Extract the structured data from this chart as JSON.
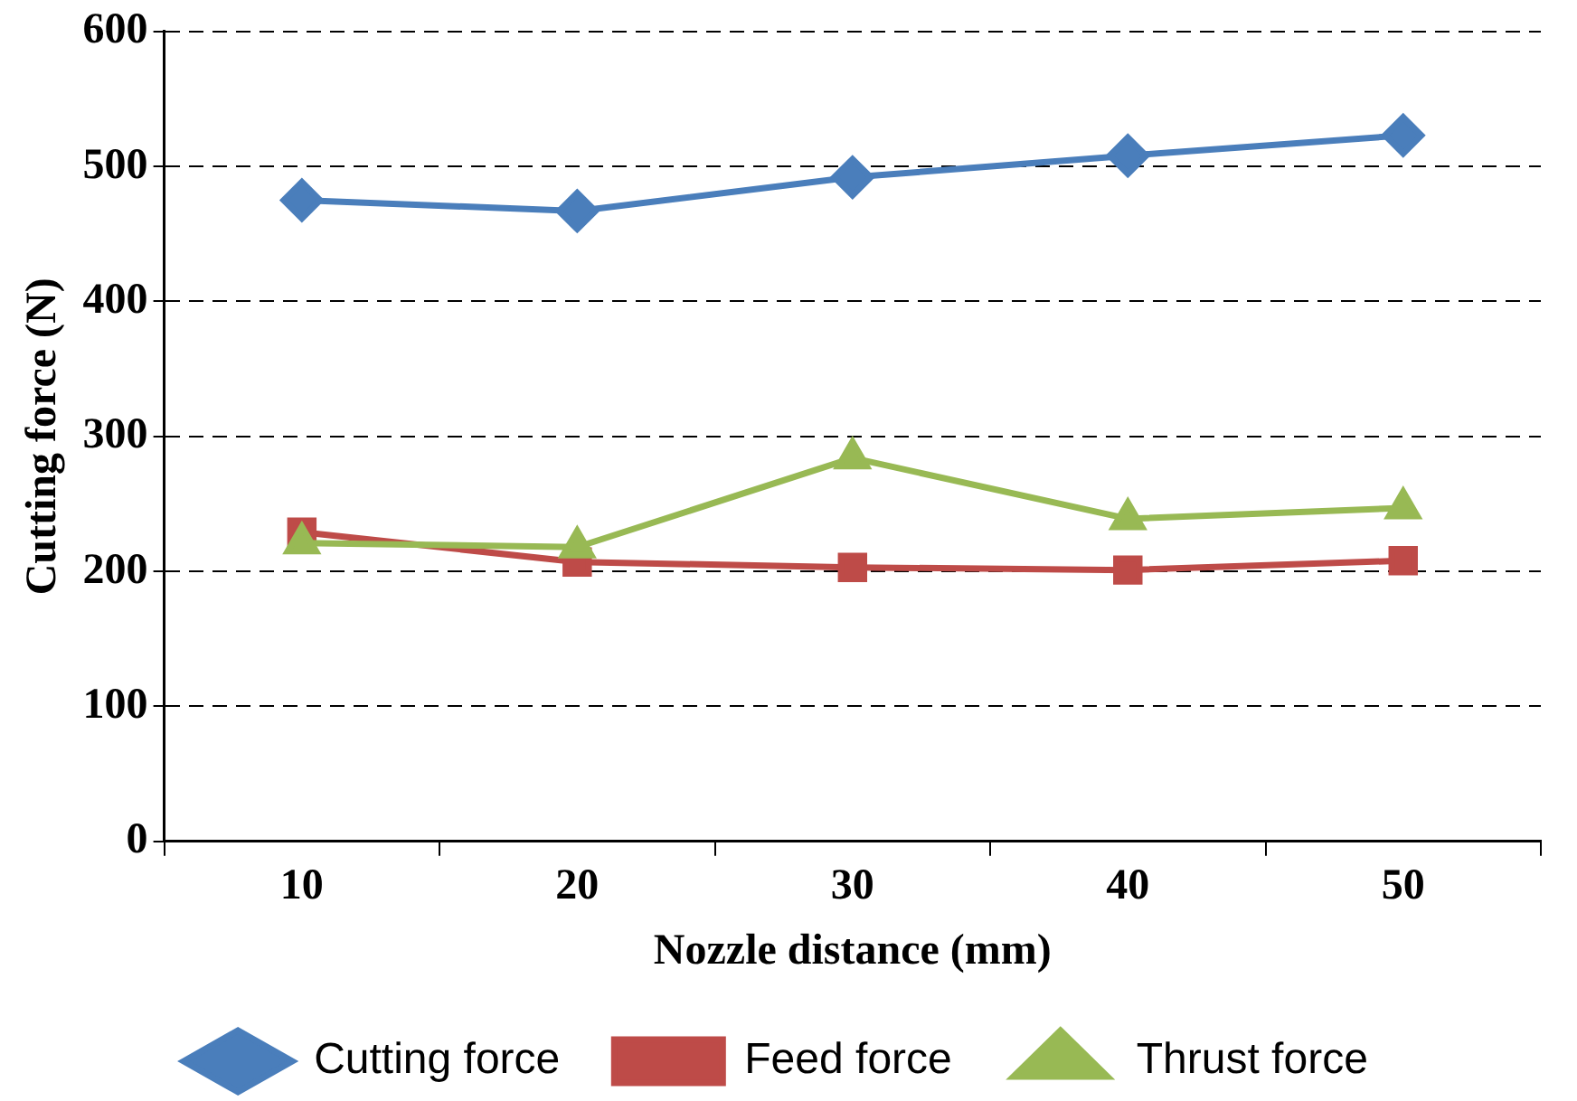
{
  "chart_data": {
    "type": "line",
    "xlabel": "Nozzle distance (mm)",
    "ylabel": "Cutting force (N)",
    "categories": [
      "10",
      "20",
      "30",
      "40",
      "50"
    ],
    "ylim": [
      0,
      600
    ],
    "yticks": [
      0,
      100,
      200,
      300,
      400,
      500,
      600
    ],
    "grid": "y",
    "legend": "bottom",
    "line_style": "solid",
    "series": [
      {
        "name": "Cutting force",
        "color": "#4a7ebb",
        "marker": "diamond",
        "values": [
          475,
          467,
          492,
          508,
          523
        ]
      },
      {
        "name": "Feed force",
        "color": "#be4b48",
        "marker": "square",
        "values": [
          229,
          207,
          203,
          201,
          208
        ]
      },
      {
        "name": "Thrust force",
        "color": "#98b954",
        "marker": "triangle",
        "values": [
          221,
          218,
          284,
          239,
          247
        ]
      }
    ]
  }
}
